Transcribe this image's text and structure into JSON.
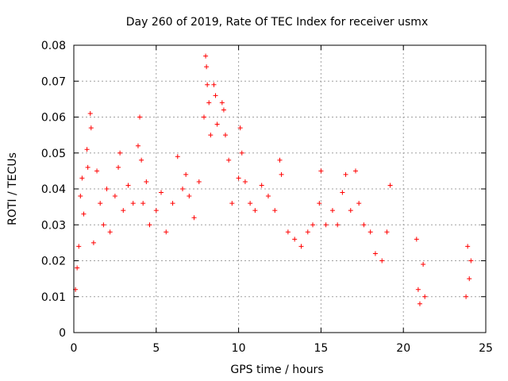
{
  "chart_data": {
    "type": "scatter",
    "title": "Day 260 of 2019, Rate Of TEC Index for receiver usmx",
    "xlabel": "GPS time / hours",
    "ylabel": "ROTI / TECUs",
    "xlim": [
      0,
      25
    ],
    "ylim": [
      0,
      0.08
    ],
    "x_ticks": [
      0,
      5,
      10,
      15,
      20,
      25
    ],
    "x_tick_labels": [
      "0",
      "5",
      "10",
      "15",
      "20",
      "25"
    ],
    "y_ticks": [
      0,
      0.01,
      0.02,
      0.03,
      0.04,
      0.05,
      0.06,
      0.07,
      0.08
    ],
    "y_tick_labels": [
      "0",
      "0.01",
      "0.02",
      "0.03",
      "0.04",
      "0.05",
      "0.06",
      "0.07",
      "0.08"
    ],
    "grid": true,
    "marker": "+",
    "color": "#ff0000",
    "series": [
      {
        "points": [
          [
            0.1,
            0.012
          ],
          [
            0.2,
            0.018
          ],
          [
            0.3,
            0.024
          ],
          [
            0.4,
            0.038
          ],
          [
            0.5,
            0.043
          ],
          [
            0.6,
            0.033
          ],
          [
            0.8,
            0.051
          ],
          [
            0.85,
            0.046
          ],
          [
            1.0,
            0.061
          ],
          [
            1.05,
            0.057
          ],
          [
            1.2,
            0.025
          ],
          [
            1.4,
            0.045
          ],
          [
            1.6,
            0.036
          ],
          [
            1.8,
            0.03
          ],
          [
            2.0,
            0.04
          ],
          [
            2.2,
            0.028
          ],
          [
            2.5,
            0.038
          ],
          [
            2.7,
            0.046
          ],
          [
            2.8,
            0.05
          ],
          [
            3.0,
            0.034
          ],
          [
            3.3,
            0.041
          ],
          [
            3.6,
            0.036
          ],
          [
            3.9,
            0.052
          ],
          [
            4.0,
            0.06
          ],
          [
            4.1,
            0.048
          ],
          [
            4.2,
            0.036
          ],
          [
            4.4,
            0.042
          ],
          [
            4.6,
            0.03
          ],
          [
            5.0,
            0.034
          ],
          [
            5.3,
            0.039
          ],
          [
            5.6,
            0.028
          ],
          [
            6.0,
            0.036
          ],
          [
            6.3,
            0.049
          ],
          [
            6.6,
            0.04
          ],
          [
            6.8,
            0.044
          ],
          [
            7.0,
            0.038
          ],
          [
            7.3,
            0.032
          ],
          [
            7.6,
            0.042
          ],
          [
            7.9,
            0.06
          ],
          [
            8.0,
            0.077
          ],
          [
            8.05,
            0.074
          ],
          [
            8.1,
            0.069
          ],
          [
            8.2,
            0.064
          ],
          [
            8.3,
            0.055
          ],
          [
            8.5,
            0.069
          ],
          [
            8.6,
            0.066
          ],
          [
            8.7,
            0.058
          ],
          [
            9.0,
            0.064
          ],
          [
            9.1,
            0.062
          ],
          [
            9.2,
            0.055
          ],
          [
            9.4,
            0.048
          ],
          [
            9.6,
            0.036
          ],
          [
            10.0,
            0.043
          ],
          [
            10.1,
            0.057
          ],
          [
            10.2,
            0.05
          ],
          [
            10.4,
            0.042
          ],
          [
            10.7,
            0.036
          ],
          [
            11.0,
            0.034
          ],
          [
            11.4,
            0.041
          ],
          [
            11.8,
            0.038
          ],
          [
            12.2,
            0.034
          ],
          [
            12.5,
            0.048
          ],
          [
            12.6,
            0.044
          ],
          [
            13.0,
            0.028
          ],
          [
            13.4,
            0.026
          ],
          [
            13.8,
            0.024
          ],
          [
            14.2,
            0.028
          ],
          [
            14.5,
            0.03
          ],
          [
            14.9,
            0.036
          ],
          [
            15.0,
            0.045
          ],
          [
            15.3,
            0.03
          ],
          [
            15.7,
            0.034
          ],
          [
            16.0,
            0.03
          ],
          [
            16.3,
            0.039
          ],
          [
            16.5,
            0.044
          ],
          [
            16.8,
            0.034
          ],
          [
            17.1,
            0.045
          ],
          [
            17.3,
            0.036
          ],
          [
            17.6,
            0.03
          ],
          [
            18.0,
            0.028
          ],
          [
            18.3,
            0.022
          ],
          [
            18.7,
            0.02
          ],
          [
            19.0,
            0.028
          ],
          [
            19.2,
            0.041
          ],
          [
            20.8,
            0.026
          ],
          [
            20.9,
            0.012
          ],
          [
            21.0,
            0.008
          ],
          [
            21.2,
            0.019
          ],
          [
            21.3,
            0.01
          ],
          [
            23.8,
            0.01
          ],
          [
            23.9,
            0.024
          ],
          [
            24.0,
            0.015
          ],
          [
            24.1,
            0.02
          ]
        ]
      }
    ]
  }
}
